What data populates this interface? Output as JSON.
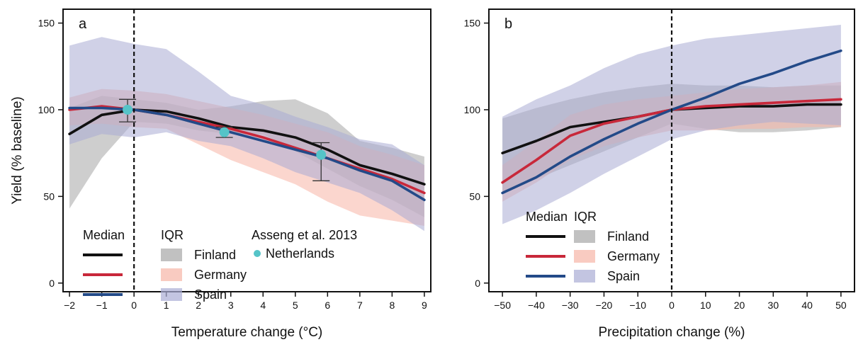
{
  "chart_data": [
    {
      "type": "line",
      "panel_label": "a",
      "xlabel": "Temperature change (°C)",
      "ylabel": "Yield (% baseline)",
      "xlim": [
        -2.2,
        9.2
      ],
      "ylim": [
        -5,
        158
      ],
      "xticks": [
        -2,
        -1,
        0,
        1,
        2,
        3,
        4,
        5,
        6,
        7,
        8,
        9
      ],
      "xtick_labels": [
        "−2",
        "−1",
        "0",
        "1",
        "2",
        "3",
        "4",
        "5",
        "6",
        "7",
        "8",
        "9"
      ],
      "yticks": [
        0,
        50,
        100,
        150
      ],
      "ytick_labels": [
        "0",
        "50",
        "100",
        "150"
      ],
      "baseline_x": 0,
      "grid": false,
      "legend_position": "bottom-left",
      "legend": {
        "median_title": "Median",
        "iqr_title": "IQR",
        "obs_title": "Asseng et al. 2013",
        "obs_label": "Netherlands"
      },
      "x": [
        -2,
        -1,
        0,
        1,
        2,
        3,
        4,
        5,
        6,
        7,
        8,
        9
      ],
      "series": [
        {
          "name": "Finland",
          "color": "#111111",
          "band_color": "#a6a6a6",
          "median": [
            86,
            97,
            100,
            99,
            95,
            90,
            88,
            84,
            77,
            68,
            63,
            57
          ],
          "iqr_low": [
            43,
            72,
            93,
            92,
            88,
            86,
            86,
            76,
            66,
            56,
            48,
            38
          ],
          "iqr_high": [
            101,
            108,
            106,
            104,
            100,
            102,
            105,
            106,
            98,
            82,
            78,
            73
          ]
        },
        {
          "name": "Germany",
          "color": "#c8283a",
          "band_color": "#f7b5a6",
          "median": [
            100,
            102,
            100,
            97,
            93,
            89,
            84,
            78,
            72,
            66,
            60,
            52
          ],
          "iqr_low": [
            91,
            92,
            90,
            89,
            80,
            71,
            64,
            57,
            47,
            39,
            36,
            33
          ],
          "iqr_high": [
            107,
            112,
            111,
            109,
            105,
            101,
            97,
            92,
            87,
            79,
            74,
            68
          ]
        },
        {
          "name": "Spain",
          "color": "#234a88",
          "band_color": "#a9acd4",
          "median": [
            101,
            101,
            100,
            97,
            92,
            87,
            82,
            77,
            72,
            65,
            59,
            48
          ],
          "iqr_low": [
            80,
            86,
            84,
            87,
            82,
            79,
            72,
            64,
            58,
            52,
            42,
            30
          ],
          "iqr_high": [
            137,
            142,
            138,
            135,
            122,
            108,
            103,
            96,
            90,
            83,
            80,
            68
          ]
        }
      ],
      "observations": {
        "name": "Netherlands",
        "color": "#55c4c8",
        "points": [
          {
            "x": -0.2,
            "y": 100,
            "err_low": 93,
            "err_high": 106
          },
          {
            "x": 2.8,
            "y": 87,
            "err_low": 84,
            "err_high": 90
          },
          {
            "x": 5.8,
            "y": 74,
            "err_low": 59,
            "err_high": 81
          }
        ]
      }
    },
    {
      "type": "line",
      "panel_label": "b",
      "xlabel": "Precipitation change (%)",
      "ylabel": "",
      "xlim": [
        -54,
        54
      ],
      "ylim": [
        -5,
        158
      ],
      "xticks": [
        -50,
        -40,
        -30,
        -20,
        -10,
        0,
        10,
        20,
        30,
        40,
        50
      ],
      "xtick_labels": [
        "−50",
        "−40",
        "−30",
        "−20",
        "−10",
        "0",
        "10",
        "20",
        "30",
        "40",
        "50"
      ],
      "yticks": [
        0,
        50,
        100,
        150
      ],
      "ytick_labels": [
        "0",
        "50",
        "100",
        "150"
      ],
      "baseline_x": 0,
      "grid": false,
      "legend_position": "bottom-left",
      "legend": {
        "median_title": "Median",
        "iqr_title": "IQR"
      },
      "x": [
        -50,
        -40,
        -30,
        -20,
        -10,
        0,
        10,
        20,
        30,
        40,
        50
      ],
      "series": [
        {
          "name": "Finland",
          "color": "#111111",
          "band_color": "#a6a6a6",
          "median": [
            75,
            82,
            90,
            93,
            96,
            100,
            101,
            102,
            102,
            103,
            103
          ],
          "iqr_low": [
            52,
            60,
            68,
            76,
            84,
            92,
            89,
            87,
            87,
            88,
            90
          ],
          "iqr_high": [
            95,
            101,
            106,
            110,
            113,
            115,
            114,
            114,
            113,
            114,
            114
          ]
        },
        {
          "name": "Germany",
          "color": "#c8283a",
          "band_color": "#f7b5a6",
          "median": [
            58,
            71,
            85,
            92,
            96,
            100,
            102,
            103,
            104,
            105,
            106
          ],
          "iqr_low": [
            47,
            58,
            71,
            79,
            84,
            88,
            88,
            89,
            89,
            90,
            90
          ],
          "iqr_high": [
            68,
            82,
            97,
            103,
            106,
            108,
            110,
            112,
            113,
            114,
            116
          ]
        },
        {
          "name": "Spain",
          "color": "#234a88",
          "band_color": "#a9acd4",
          "median": [
            52,
            61,
            73,
            83,
            92,
            100,
            107,
            115,
            121,
            128,
            134
          ],
          "iqr_low": [
            34,
            42,
            52,
            63,
            73,
            83,
            88,
            91,
            93,
            92,
            91
          ],
          "iqr_high": [
            96,
            106,
            114,
            124,
            132,
            137,
            141,
            143,
            145,
            147,
            149
          ]
        }
      ]
    }
  ]
}
